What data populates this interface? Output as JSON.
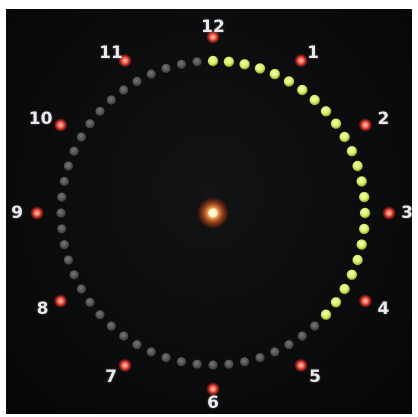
{
  "clock": {
    "hour_labels": [
      "12",
      "1",
      "2",
      "3",
      "4",
      "5",
      "6",
      "7",
      "8",
      "9",
      "10",
      "11"
    ],
    "seconds_lit": 23,
    "colors": {
      "lit_led": "#d9f06a",
      "unlit_led": "#5a5a5a",
      "hour_led": "#ff5a4a",
      "center_led": "#ffb060",
      "background": "#0b0c0d"
    },
    "icons": [
      "center-led-icon",
      "hour-led-icon",
      "second-led-icon"
    ]
  }
}
